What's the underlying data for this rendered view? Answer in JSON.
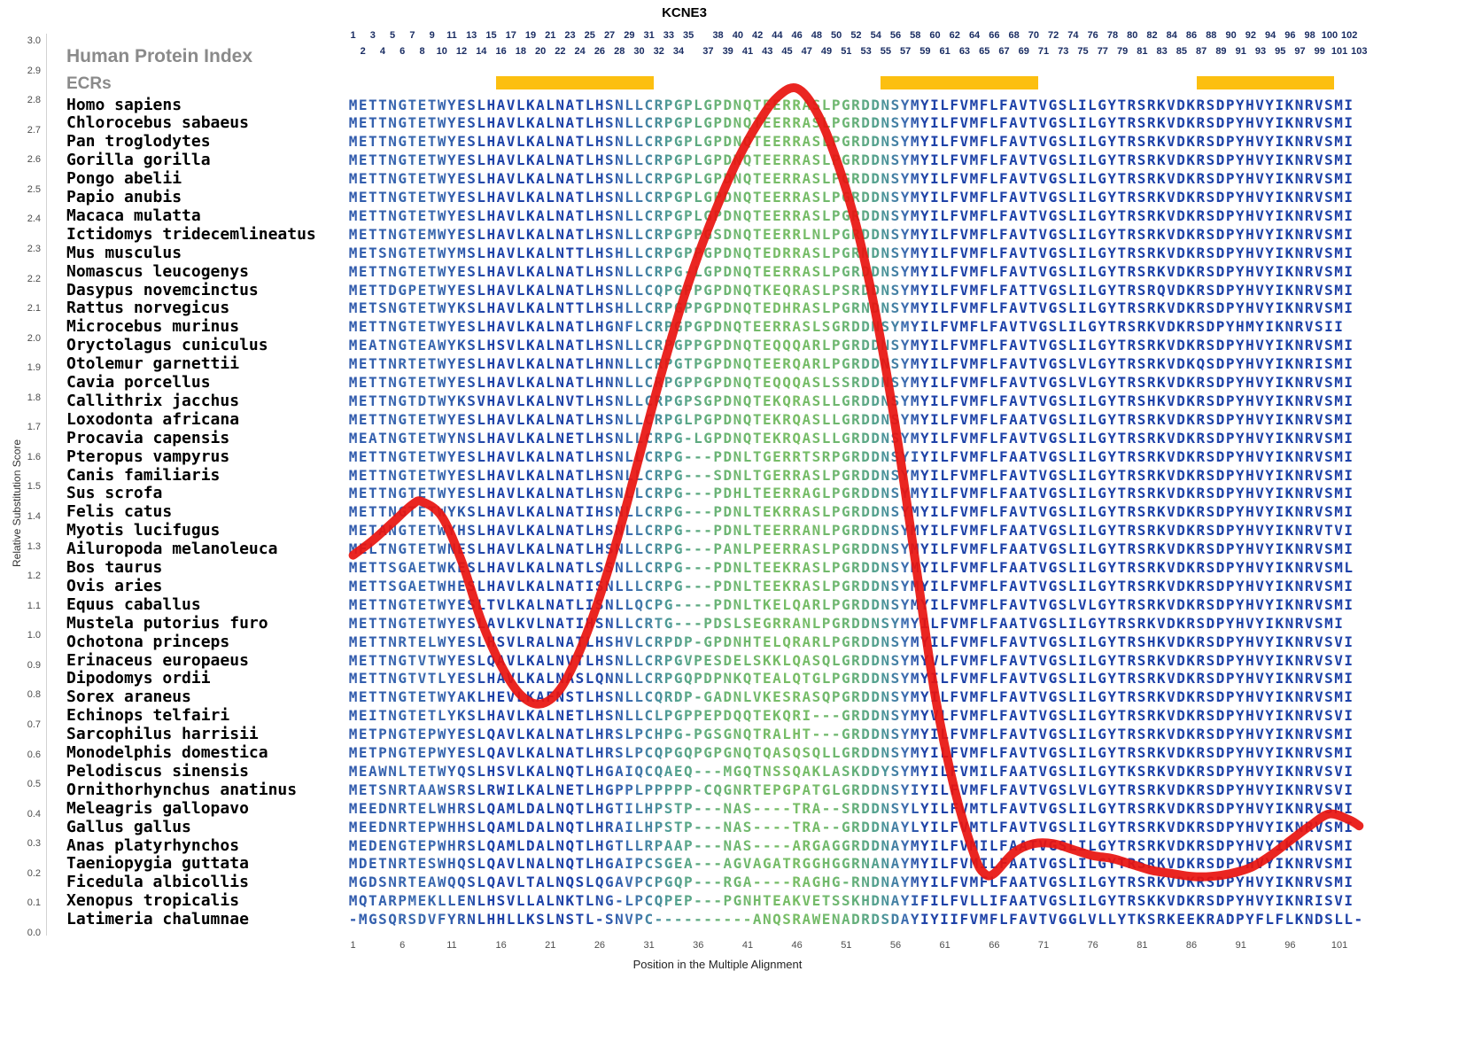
{
  "title": "KCNE3",
  "legend": {
    "hpi": "Human Protein Index",
    "ecrs": "ECRs"
  },
  "y_axis": {
    "label": "Relative Substitution Score",
    "ticks": [
      "3.0",
      "2.9",
      "2.8",
      "2.7",
      "2.6",
      "2.5",
      "2.4",
      "2.3",
      "2.2",
      "2.1",
      "2.0",
      "1.9",
      "1.8",
      "1.7",
      "1.6",
      "1.5",
      "1.4",
      "1.3",
      "1.2",
      "1.1",
      "1.0",
      "0.9",
      "0.8",
      "0.7",
      "0.6",
      "0.5",
      "0.4",
      "0.3",
      "0.2",
      "0.1",
      "0.0"
    ]
  },
  "x_axis": {
    "label": "Position in the Multiple Alignment",
    "ticks": [
      1,
      6,
      11,
      16,
      21,
      26,
      31,
      36,
      41,
      46,
      51,
      56,
      61,
      66,
      71,
      76,
      81,
      86,
      91,
      96,
      101
    ]
  },
  "ruler": {
    "top_row": [
      1,
      3,
      5,
      7,
      9,
      11,
      13,
      15,
      17,
      19,
      21,
      23,
      25,
      27,
      29,
      31,
      33,
      35,
      38,
      40,
      42,
      44,
      46,
      48,
      50,
      52,
      54,
      56,
      58,
      60,
      62,
      64,
      66,
      68,
      70,
      72,
      74,
      76,
      78,
      80,
      82,
      84,
      86,
      88,
      90,
      92,
      94,
      96,
      98,
      100,
      102
    ],
    "bottom_row": [
      2,
      4,
      6,
      8,
      10,
      12,
      14,
      16,
      18,
      20,
      22,
      24,
      26,
      28,
      30,
      32,
      34,
      37,
      39,
      41,
      43,
      45,
      47,
      49,
      51,
      53,
      55,
      57,
      59,
      61,
      63,
      65,
      67,
      69,
      71,
      73,
      75,
      77,
      79,
      81,
      83,
      85,
      87,
      89,
      91,
      93,
      95,
      97,
      99,
      101,
      103
    ]
  },
  "ecr_regions": [
    {
      "start": 16,
      "end": 31
    },
    {
      "start": 55,
      "end": 70
    },
    {
      "start": 87,
      "end": 100
    }
  ],
  "colors": {
    "ecr": "#FCBF10",
    "line": "#E81410",
    "conserved": "#1E42A8",
    "variable": "#7DC15F"
  },
  "alignment": {
    "rows": [
      {
        "species": "Homo sapiens",
        "seq": "METTNGTETWYESLHAVLKALNATLHSNLLCRPGPLGPDNQTEERRASLPGRDDNSYMYILFVMFLFAVTVGSLILGYTRSRKVDKRSDPYHVYIKNRVSMI"
      },
      {
        "species": "Chlorocebus sabaeus",
        "seq": "METTNGTETWYESLHAVLKALNATLHSNLLCRPGPLGPDNQTEERRASLPGRDDNSYMYILFVMFLFAVTVGSLILGYTRSRKVDKRSDPYHVYIKNRVSMI"
      },
      {
        "species": "Pan troglodytes",
        "seq": "METTNGTETWYESLHAVLKALNATLHSNLLCRPGPLGPDNQTEERRASLPGRDDNSYMYILFVMFLFAVTVGSLILGYTRSRKVDKRSDPYHVYIKNRVSMI"
      },
      {
        "species": "Gorilla gorilla",
        "seq": "METTNGTETWYESLHAVLKALNATLHSNLLCRPGPLGPDNQTEERRASLPGRDDNSYMYILFVMFLFAVTVGSLILGYTRSRKVDKRSDPYHVYIKNRVSMI"
      },
      {
        "species": "Pongo abelii",
        "seq": "METTNGTETWYESLHAVLKALNATLHSNLLCRPGPLGPDNQTEERRASLPGRDDNSYMYILFVMFLFAVTVGSLILGYTRSRKVDKRSDPYHVYIKNRVSMI"
      },
      {
        "species": "Papio anubis",
        "seq": "METTNGTETWYESLHAVLKALNATLHSNLLCRPGPLGPDNQTEERRASLPGRDDNSYMYILFVMFLFAVTVGSLILGYTRSRKVDKRSDPYHVYIKNRVSMI"
      },
      {
        "species": "Macaca mulatta",
        "seq": "METTNGTETWYESLHAVLKALNATLHSNLLCRPGPLGPDNQTEERRASLPGRDDNSYMYILFVMFLFAVTVGSLILGYTRSRKVDKRSDPYHVYIKNRVSMI"
      },
      {
        "species": "Ictidomys tridecemlineatus",
        "seq": "METTNGTEMWYESLHAVLKALNATLHSNLLCRPGPPGSDNQTEERRLNLPGRDDNSYMYILFVMFLFAVTVGSLILGYTRSRKVDKRSDPYHVYIKNRVSMI"
      },
      {
        "species": "Mus musculus",
        "seq": "METSNGTETWYMSLHAVLKALNTTLHSHLLCRPGPPGPDNQTEDRRASLPGRNDNSYMYILFVMFLFAVTVGSLILGYTRSRKVDKRSDPYHVYIKNRVSMI"
      },
      {
        "species": "Nomascus leucogenys",
        "seq": "METTNGTETWYESLHAVLKALNATLHSNLLCRPG-LGPDNQTEERRASLPGRDDNSYMYILFVMFLFAVTVGSLILGYTRSRKVDKRSDPYHVYIKNRVSMI"
      },
      {
        "species": "Dasypus novemcinctus",
        "seq": "METTDGPETWYESLHAVLKALNATLHSNLLCQPGPPGPDNQTKEQRASLPSRDDNSYMYILFVMFLFATTVGSLILGYTRSRQVDKRSDPYHVYIKNRVSMI"
      },
      {
        "species": "Rattus norvegicus",
        "seq": "METSNGTETWYKSLHAVLKALNTTLHSHLLCRPGPPGPDNQTEDHRASLPGRNDNSYMYILFVMFLFAVTVGSLILGYTRSRKVDKRSDPYHVYIKNRVSMI"
      },
      {
        "species": "Microcebus murinus",
        "seq": "METTNGTETWYESLHAVLKALNATLHGNFLCRPGPGPDNQTEERRASLSGRDDNSYMYILFVMFLFAVTVGSLILGYTRSRKVDKRSDPYHMYIKNRVSII"
      },
      {
        "species": "Oryctolagus cuniculus",
        "seq": "MEATNGTEAWYKSLHSVLKALNATLHSNLLCRPGPPGPDNQTEQQQARLPGRDDNSYMYILFVMFLFAVTVGSLILGYTRSRKVDKRSDPYHVYIKNRVSMI"
      },
      {
        "species": "Otolemur garnettii",
        "seq": "METTNRTETWYESLHAVLKALNATLHNNLLCRPGTPGPDNQTEERQARLPGRDDNSYMYILFVMFLFAVTVGSLVLGYTRSRKVDKQSDPYHVYIKNRISMI"
      },
      {
        "species": "Cavia porcellus",
        "seq": "METTNGTETWYESLHAVLKALNATLHNNLLCRPGPPGPDNQTEQQQASLSSRDDNSYMYILFVMFLFAVTVGSLVLGYTRSRKVDKRSDPYHVYIKNRVSMI"
      },
      {
        "species": "Callithrix jacchus",
        "seq": "METTNGTDTWYKSVHAVLKALNVTLHSNLLCRPGPSGPDNQTEKQRASLLGRDDNSYMYILFVMFLFAVTVGSLILGYTRSHKVDKRSDPYHVYIKNRVSMI"
      },
      {
        "species": "Loxodonta africana",
        "seq": "METTNGTETWYESLHAVLKALNATLHSNLLCRPGLPGPDNQTEKRQASLLGRDDNSYMYILFVMFLFAATVGSLILGYTRSRKVDKRSDPYHVYIKNRVSMI"
      },
      {
        "species": "Procavia capensis",
        "seq": "MEATNGTETWYNSLHAVLKALNETLHSNLLCRPG-LGPDNQTEKRQASLLGRDDNSYMYILFVMFLFAVTVGSLILGYTRSRKVDKRSDPYHVYIKNRVSMI"
      },
      {
        "species": "Pteropus vampyrus",
        "seq": "METTNGTETWYESLHAVLKALNATLHSNLLCRPG---PDNLTGERRTSRPGRDDNSYIYILFVMFLFAATVGSLILGYTRSRKVDKRSDPYHVYIKNRVSMI"
      },
      {
        "species": "Canis familiaris",
        "seq": "METTNGTETWYESLHAVLKALNATLHSNLLCRPG---SDNLTGERRASLPGRDDNSYMYILFVMFLFAVTVGSLILGYTRSRKVDKRSDPYHVYIKNRVSMI"
      },
      {
        "species": "Sus scrofa",
        "seq": "METTNGTETWYESLHAVLKALNATLHSNLLCRPG---PDHLTEERRAGLPGRDDNSYMYILFVMFLFAATVGSLILGYTRSRKVDKRSDPYHVYIKNRVSMI"
      },
      {
        "species": "Felis catus",
        "seq": "METTNGTETWYKSLHAVLKALNATIHSNLLCRPG---PDNLTEKRRASLPGRDDNSYMYILFVMFLFAVTVGSLILGYTRSRKVDKRSDPYHVYIKNRVSMI"
      },
      {
        "species": "Myotis lucifugus",
        "seq": "METANGTETWYHSLHAVLKALNATLHSNLLCRPG---PDNLTEERRANLPGRDDNSYMYILFVMFLFAATVGSLILGYTRSRKVDKRSDPYHVYIKNRVTVI"
      },
      {
        "species": "Ailuropoda melanoleuca",
        "seq": "MELTNGTETWNESLHAVLKALNATLHSNLLCRPG---PANLPEERRASLPGRDDNSYMYILFVMFLFAATVGSLILGYTRSRKVDKRSDPYHVYIKNRVSMI"
      },
      {
        "species": "Bos taurus",
        "seq": "METTSGAETWKESLHAVLKALNATLSSNLLCRPG---PDNLTEEKRASLPGRDDNSYMYILFVMFLFAATVGSLILGYTRSRKVDKRSDPYHVYIKNRVSML"
      },
      {
        "species": "Ovis aries",
        "seq": "METTSGAETWHESLHAVLKALNATISNLLLCRPG---PDNLTEEKRASLPGRDDNSYMYILFVMFLFAVTVGSLILGYTRSRKVDKRSDPYHVYIKNRVSMI"
      },
      {
        "species": "Equus caballus",
        "seq": "METTNGTETWYESLTVLKALNATLISNLLQCPG----PDNLTKELQARLPGRDDNSYMYILFVMFLFAVTVGSLVLGYTRSRKVDKRSDPYHVYIKNRVSMI"
      },
      {
        "species": "Mustela putorius furo",
        "seq": "METTNGTETWYESLAVLKVLNATIHSNLLCRTG---PDSLSEGRRANLPGRDDNSYMYILFVMFLFAATVGSLILGYTRSRKVDKRSDPYHVYIKNRVSMI"
      },
      {
        "species": "Ochotona princeps",
        "seq": "METTNRTELWYESLHSVLRALNATLHSHVLCRPDP-GPDNHTELQRARLPGRDDNSYMYILFVMFLFAVTVGSLILGYTRSHKVDKRSDPYHVYIKNRVSVI"
      },
      {
        "species": "Erinaceus europaeus",
        "seq": "METTNGTVTWYESLQAVLKALNVTLHSNLLCRPGVPESDELSKKLQASQLGRDDNSYMYVLFVMFLFAVTVGSLILGYTRSRKVDKRSDPYHVYIKNRVSVI"
      },
      {
        "species": "Dipodomys ordii",
        "seq": "METTNGTVTLYESLHAVLKALNASLQNNLLCRPGQPDPNKQTEALQTGLPGRDDNSYMYILFVMFLFAVTVGSLILGYTRSRKVDKRSDPYHVYIKNRVSMI"
      },
      {
        "species": "Sorex araneus",
        "seq": "METTNGTETWYAKLHEVLKAFNSTLHSNLLCQRDP-GADNLVKESRASQPGRDDNSYMYILFVMFLFAVTVGSLILGYTRSRKVDKRSDPYHVYIKNRVSMI"
      },
      {
        "species": "Echinops telfairi",
        "seq": "MEITNGTETLYKSLHAVLKALNETLHSNLLCLPGPPEPDQQTEKQRI---GRDDNSYMYVLFVMFLFAVTVGSLILGYTRSRKVDKRSDPYHVYIKNRVSVI"
      },
      {
        "species": "Sarcophilus harrisii",
        "seq": "METPNGTEPWYESLQAVLKALNATLHRSLPCHPG-PGSGNQTRALHT---GRDDNSYMYILFVMFLFAVTVGSLILGYTRSRKVDKRSDPYHVYIKNRVSMI"
      },
      {
        "species": "Monodelphis domestica",
        "seq": "METPNGTEPWYESLQAVLKALNATLHRSLPCQPGQPGPGNQTQASQSQLLGRDDNSYMYILFVMFLFAVTVGSLILGYTRSRKVDKRSDPYHVYIKNRVSMI"
      },
      {
        "species": "Pelodiscus sinensis",
        "seq": "MEAWNLTETWYQSLHSVLKALNQTLHGAIQCQAEQ---MGQTNSSQAKLASKDDYSYMYILFVMILFAATVGSLILGYTKSRKVDKRSDPYHVYIKNRVSVI"
      },
      {
        "species": "Ornithorhynchus anatinus",
        "seq": "METSNRTAAWSRSLRWILKALNETLHGPPLPPPPP-CQGNRTEPGPATGLGRDDNSYIYILFVMFLFAVTVGSLVLGYTRSRKVDKRSDPYHVYIKNRVSVI"
      },
      {
        "species": "Meleagris gallopavo",
        "seq": "MEEDNRTELWHRSLQAMLDALNQTLHGTILHPSTP---NAS----TRA--SRDDNSYLYILFVMTLFAVTVGSLILGYTRSRKVDKRSDPYHVYIKNRVSMI"
      },
      {
        "species": "Gallus gallus",
        "seq": "MEEDNRTEPWHHSLQAMLDALNQTLHRAILHPSTP---NAS----TRA--GRDDNAYLYILFVMTLFAVTVGSLILGYTRSRKVDKRSDPYHVYIKNRVSMI"
      },
      {
        "species": "Anas platyrhynchos",
        "seq": "MEDENGTEPWHRSLQAMLDALNQTLHGTLLRPAAP---NAS----ARGAGGRDDNAYMYILFVMILFAATVGSLILGYTRSRKVDKRSDPYHVYIKNRVSMI"
      },
      {
        "species": "Taeniopygia guttata",
        "seq": "MDETNRTESWHQSLQAVLNALNQTLHGAIPCSGEA---AGVAGATRGGHGGRNANAYMYILFVMILFAATVGSLILGYTRSRKVDKRSDPYHVYIKNRVSMI"
      },
      {
        "species": "Ficedula albicollis",
        "seq": "MGDSNRTEAWQQSLQAVLTALNQSLQGAVPCPGQP---RGA----RAGHG-RNDNAYMYILFVMFLFAATVGSLILGYTRSRKVDKRSDPYHVYIKNRVSMI"
      },
      {
        "species": "Xenopus tropicalis",
        "seq": "MQTARPMEKLLENLHSVLLALNKTLNG-LPCQPEP---PGNHTEAKVETSSKHDNAYIFILFVLLIFAATVGSLILGYTRSKKVDKRSDPYHVYIKNRISVI"
      },
      {
        "species": "Latimeria chalumnae",
        "seq": "-MGSQRSDVFYRNLHHLLKSLNSTL-SNVPC----------ANQSRAWENADRDSDAYIYIIFVMFLFAVTVGGLVLLYTKSRKEEKRADPYFLFLKNDSLL-"
      }
    ]
  },
  "chart_data": {
    "type": "line",
    "title": "KCNE3",
    "xlabel": "Position in the Multiple Alignment",
    "ylabel": "Relative Substitution Score",
    "xlim": [
      1,
      103
    ],
    "ylim": [
      0,
      3
    ],
    "x": [
      1,
      3,
      5,
      7,
      8,
      10,
      12,
      14,
      16,
      18,
      20,
      22,
      24,
      26,
      28,
      30,
      32,
      34,
      36,
      38,
      40,
      42,
      44,
      46,
      48,
      50,
      52,
      54,
      56,
      58,
      60,
      62,
      64,
      65,
      66,
      68,
      70,
      72,
      74,
      76,
      78,
      80,
      82,
      84,
      86,
      88,
      90,
      92,
      94,
      96,
      98,
      100,
      102,
      103
    ],
    "y": [
      1.27,
      1.32,
      1.38,
      1.44,
      1.45,
      1.4,
      1.25,
      1.05,
      0.9,
      0.8,
      0.77,
      0.82,
      0.95,
      1.13,
      1.35,
      1.6,
      1.85,
      2.08,
      2.28,
      2.45,
      2.6,
      2.72,
      2.81,
      2.84,
      2.76,
      2.6,
      2.38,
      2.08,
      1.7,
      1.25,
      0.8,
      0.48,
      0.26,
      0.2,
      0.2,
      0.27,
      0.3,
      0.3,
      0.28,
      0.26,
      0.25,
      0.23,
      0.21,
      0.2,
      0.19,
      0.19,
      0.2,
      0.22,
      0.26,
      0.31,
      0.36,
      0.4,
      0.38,
      0.36
    ]
  }
}
